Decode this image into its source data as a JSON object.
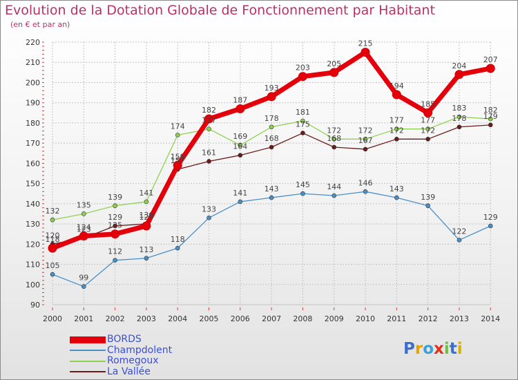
{
  "title": "Evolution de la Dotation Globale de Fonctionnement par Habitant",
  "subtitle": "(en € et par an)",
  "logo": "Proxiti",
  "chart_data": {
    "type": "line",
    "x": [
      "2000",
      "2001",
      "2002",
      "2003",
      "2004",
      "2005",
      "2006",
      "2007",
      "2008",
      "2009",
      "2010",
      "2011",
      "2012",
      "2013",
      "2014"
    ],
    "ylim": [
      90,
      220
    ],
    "yticks": [
      90,
      100,
      110,
      120,
      130,
      140,
      150,
      160,
      170,
      180,
      190,
      200,
      210,
      220
    ],
    "grid": true,
    "legend_position": "bottom-left",
    "series": [
      {
        "name": "BORDS",
        "color": "#e3000b",
        "values": [
          118,
          124,
          125,
          129,
          159,
          182,
          187,
          193,
          203,
          205,
          215,
          194,
          185,
          204,
          207
        ]
      },
      {
        "name": "Champdolent",
        "color": "#4a90c8",
        "values": [
          105,
          99,
          112,
          113,
          118,
          133,
          141,
          143,
          145,
          144,
          146,
          143,
          139,
          122,
          129
        ]
      },
      {
        "name": "Romegoux",
        "color": "#8fd14f",
        "values": [
          132,
          135,
          139,
          141,
          174,
          177,
          169,
          178,
          181,
          172,
          172,
          177,
          177,
          183,
          182
        ]
      },
      {
        "name": "La Vallée",
        "color": "#6b1a1a",
        "values": [
          120,
          123,
          129,
          130,
          157,
          161,
          164,
          168,
          175,
          168,
          167,
          172,
          172,
          178,
          179
        ]
      }
    ]
  }
}
